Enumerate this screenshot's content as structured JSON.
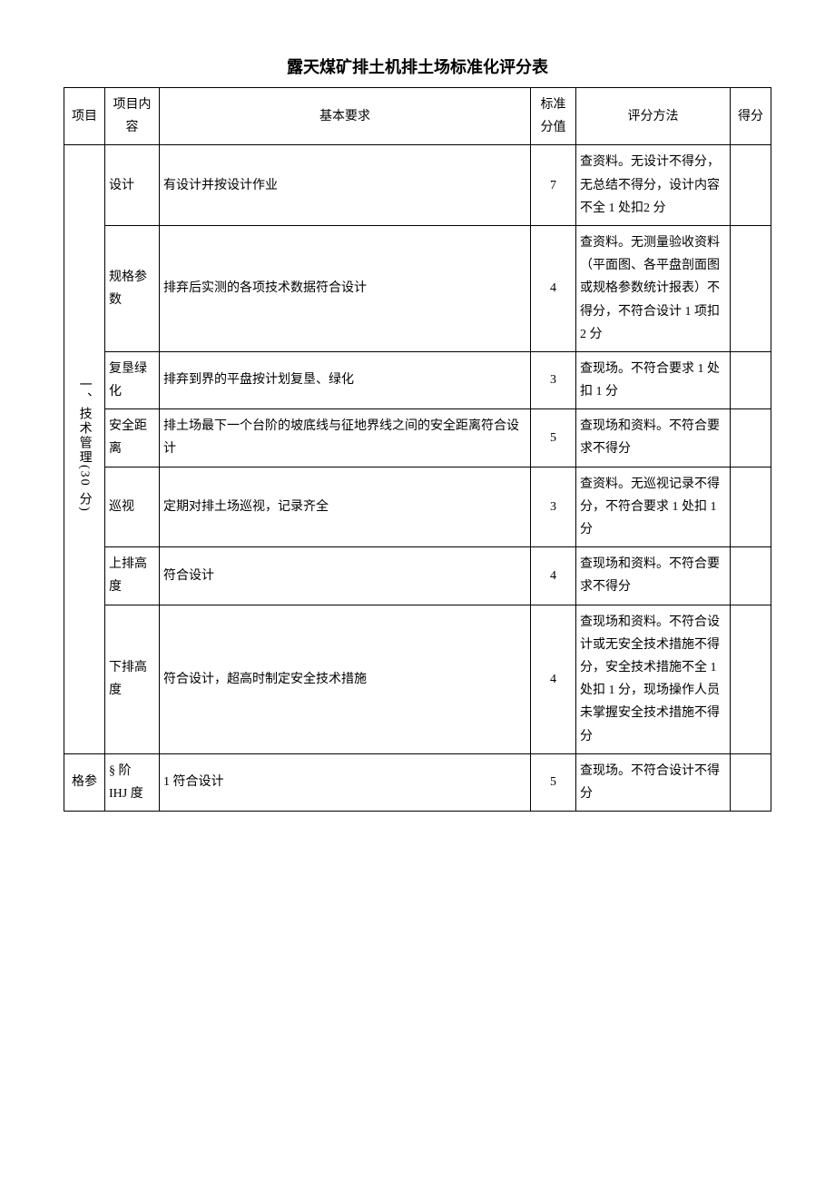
{
  "title": "露天煤矿排土机排土场标准化评分表",
  "header": {
    "project": "项目",
    "item": "项目内容",
    "requirement": "基本要求",
    "std_score": "标准分值",
    "method": "评分方法",
    "got_score": "得分"
  },
  "section1": {
    "label": "一、技术管理(30 分)",
    "rows": [
      {
        "item": "设计",
        "req": "有设计并按设计作业",
        "score": "7",
        "method": "查资料。无设计不得分，无总结不得分，设计内容不全 1 处扣2 分"
      },
      {
        "item": "规格参数",
        "req": "排弃后实测的各项技术数据符合设计",
        "score": "4",
        "method": "查资料。无测量验收资料（平面图、各平盘剖面图或规格参数统计报表）不得分，不符合设计 1 项扣 2 分"
      },
      {
        "item": "复垦绿化",
        "req": "排弃到界的平盘按计划复垦、绿化",
        "score": "3",
        "method": "查现场。不符合要求 1 处扣 1 分"
      },
      {
        "item": "安全距离",
        "req": "排土场最下一个台阶的坡底线与征地界线之间的安全距离符合设计",
        "score": "5",
        "method": "查现场和资料。不符合要求不得分"
      },
      {
        "item": "巡视",
        "req": "定期对排土场巡视，记录齐全",
        "score": "3",
        "method": "查资料。无巡视记录不得分，不符合要求 1 处扣 1 分"
      },
      {
        "item": "上排高度",
        "req": "符合设计",
        "score": "4",
        "method": "查现场和资料。不符合要求不得分"
      },
      {
        "item": "下排高度",
        "req": "符合设计，超高时制定安全技术措施",
        "score": "4",
        "method": "查现场和资料。不符合设计或无安全技术措施不得分，安全技术措施不全 1 处扣 1 分，现场操作人员未掌握安全技术措施不得分"
      }
    ]
  },
  "section2": {
    "proj_fragment": "格参",
    "item_fragment_top": "§ 阶",
    "item_fragment_bot": "IHJ 度",
    "req_fragment": "1 符合设计",
    "score": "5",
    "method": "查现场。不符合设计不得分"
  }
}
